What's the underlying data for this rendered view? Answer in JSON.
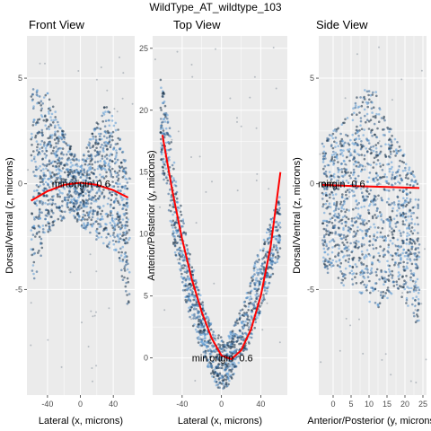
{
  "figure_title": "WildType_AT_wildtype_103",
  "chart_data": [
    {
      "type": "scatter",
      "title": "Front View",
      "xlabel": "Lateral (x, microns)",
      "ylabel": "Dorsal/Ventral (z, microns)",
      "xlim": [
        -65,
        66
      ],
      "ylim": [
        -10,
        7
      ],
      "xticks": [
        -40,
        0,
        40
      ],
      "yticks": [
        5,
        0,
        -5
      ],
      "tick_labels_x": [
        "-40",
        "0",
        "40"
      ],
      "tick_labels_y": [
        "5",
        "0",
        "-5"
      ],
      "fit_curve": {
        "x": [
          -60,
          -40,
          -20,
          0,
          20,
          40,
          58
        ],
        "y": [
          -0.8,
          -0.35,
          -0.05,
          0.05,
          -0.05,
          -0.3,
          -0.65
        ],
        "color": "#ff0000"
      },
      "annotations": [
        {
          "text": "origin",
          "x": 0,
          "y": 0
        },
        {
          "text": "min",
          "x": -25,
          "y": 0
        },
        {
          "text": "0.6",
          "x": 28,
          "y": 0
        }
      ],
      "cloud": {
        "x_range": [
          -60,
          60
        ],
        "bands": [
          {
            "x": -55,
            "lo": -4.5,
            "hi": 4.5
          },
          {
            "x": -42,
            "lo": -2.5,
            "hi": 4.5
          },
          {
            "x": -30,
            "lo": -2.0,
            "hi": 3.5
          },
          {
            "x": -15,
            "lo": -1.5,
            "hi": 2.0
          },
          {
            "x": 0,
            "lo": -2.0,
            "hi": 1.0
          },
          {
            "x": 15,
            "lo": -2.5,
            "hi": 2.5
          },
          {
            "x": 30,
            "lo": -3.0,
            "hi": 3.8
          },
          {
            "x": 45,
            "lo": -3.5,
            "hi": 3.0
          },
          {
            "x": 58,
            "lo": -6.0,
            "hi": 0.5
          }
        ]
      }
    },
    {
      "type": "scatter",
      "title": "Top View",
      "xlabel": "Lateral (x, microns)",
      "ylabel": "Anterior/Posterior (y, microns)",
      "xlim": [
        -70,
        67
      ],
      "ylim": [
        -3,
        26
      ],
      "xticks": [
        -40,
        0,
        40
      ],
      "yticks": [
        25,
        20,
        15,
        10,
        5,
        0
      ],
      "tick_labels_x": [
        "-40",
        "0",
        "40"
      ],
      "tick_labels_y": [
        "25",
        "20",
        "15",
        "10",
        "5",
        "0"
      ],
      "fit_curve": {
        "x": [
          -60,
          -50,
          -40,
          -30,
          -20,
          -10,
          0,
          10,
          20,
          30,
          40,
          50,
          60
        ],
        "y": [
          18.0,
          13.5,
          9.6,
          6.3,
          3.7,
          1.6,
          0.2,
          -0.1,
          0.6,
          2.3,
          5.0,
          9.0,
          15.0
        ],
        "color": "#ff0000"
      },
      "annotations": [
        {
          "text": "origin",
          "x": 0,
          "y": 0
        },
        {
          "text": "min",
          "x": -22,
          "y": 0
        },
        {
          "text": "0.6",
          "x": 25,
          "y": 0
        }
      ],
      "cloud": {
        "x_range": [
          -62,
          60
        ],
        "bands": [
          {
            "x": -62,
            "lo": 16,
            "hi": 23
          },
          {
            "x": -55,
            "lo": 12,
            "hi": 20
          },
          {
            "x": -45,
            "lo": 7.5,
            "hi": 14
          },
          {
            "x": -35,
            "lo": 4,
            "hi": 9.5
          },
          {
            "x": -25,
            "lo": 1.5,
            "hi": 6
          },
          {
            "x": -15,
            "lo": -0.5,
            "hi": 3.5
          },
          {
            "x": -5,
            "lo": -2.5,
            "hi": 2
          },
          {
            "x": 5,
            "lo": -2.5,
            "hi": 1.5
          },
          {
            "x": 15,
            "lo": -1,
            "hi": 3
          },
          {
            "x": 25,
            "lo": 0.5,
            "hi": 5
          },
          {
            "x": 35,
            "lo": 2.5,
            "hi": 8
          },
          {
            "x": 45,
            "lo": 5,
            "hi": 10
          },
          {
            "x": 58,
            "lo": 8,
            "hi": 13
          }
        ]
      }
    },
    {
      "type": "scatter",
      "title": "Side View",
      "xlabel": "Anterior/Posterior (y, microns)",
      "ylabel": "Dorsal/Ventral (z, microns)",
      "xlim": [
        -4,
        26
      ],
      "ylim": [
        -10,
        7
      ],
      "xticks": [
        0,
        5,
        10,
        15,
        20,
        25
      ],
      "yticks": [
        5,
        0,
        -5
      ],
      "tick_labels_x": [
        "0",
        "5",
        "10",
        "15",
        "20",
        "25"
      ],
      "tick_labels_y": [
        "5",
        "0",
        "-5"
      ],
      "fit_curve": {
        "x": [
          -3,
          5,
          15,
          24
        ],
        "y": [
          -0.05,
          -0.1,
          -0.15,
          -0.2
        ],
        "color": "#ff0000"
      },
      "annotations": [
        {
          "text": "origin",
          "x": 0,
          "y": 0
        },
        {
          "text": "min",
          "x": -2,
          "y": 0
        },
        {
          "text": "0.6",
          "x": 7,
          "y": 0
        }
      ],
      "cloud": {
        "x_range": [
          -3,
          24
        ],
        "bands": [
          {
            "x": -3,
            "lo": -4,
            "hi": 2
          },
          {
            "x": 0,
            "lo": -4.5,
            "hi": 2.5
          },
          {
            "x": 3,
            "lo": -5,
            "hi": 3
          },
          {
            "x": 6,
            "lo": -5,
            "hi": 4
          },
          {
            "x": 9,
            "lo": -5.5,
            "hi": 4.5
          },
          {
            "x": 12,
            "lo": -6,
            "hi": 4.5
          },
          {
            "x": 15,
            "lo": -5.5,
            "hi": 3
          },
          {
            "x": 18,
            "lo": -5,
            "hi": 2
          },
          {
            "x": 21,
            "lo": -6,
            "hi": 1
          },
          {
            "x": 24,
            "lo": -7,
            "hi": 0
          }
        ]
      }
    }
  ],
  "colors": {
    "panel_bg": "#ebebeb",
    "grid": "#ffffff",
    "point_light": "#5b9bd5",
    "point_mid": "#2f5f8f",
    "point_dark": "#132b43",
    "fit": "#ff0000"
  }
}
